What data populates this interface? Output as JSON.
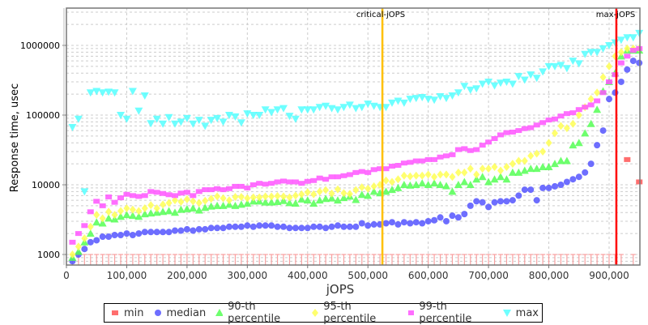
{
  "chart_data": {
    "type": "scatter",
    "title": "",
    "xlabel": "jOPS",
    "ylabel": "Response time, usec",
    "xscale": "linear",
    "yscale": "log",
    "xlim": [
      0,
      950000
    ],
    "ylim": [
      700,
      3000000
    ],
    "x_ticks": [
      "0",
      "100,000",
      "200,000",
      "300,000",
      "400,000",
      "500,000",
      "600,000",
      "700,000",
      "800,000",
      "900,000"
    ],
    "y_ticks": [
      "1000",
      "10000",
      "100000",
      "1000000"
    ],
    "grid": true,
    "legend_position": "bottom",
    "annotations": [
      {
        "label": "critical-jOPS",
        "x": 524000,
        "color": "#ffc000"
      },
      {
        "label": "max-jOPS",
        "x": 912000,
        "color": "#ff0000"
      }
    ],
    "x": [
      10000,
      20000,
      30000,
      40000,
      50000,
      60000,
      70000,
      80000,
      90000,
      100000,
      110000,
      120000,
      130000,
      140000,
      150000,
      160000,
      170000,
      180000,
      190000,
      200000,
      210000,
      220000,
      230000,
      240000,
      250000,
      260000,
      270000,
      280000,
      290000,
      300000,
      310000,
      320000,
      330000,
      340000,
      350000,
      360000,
      370000,
      380000,
      390000,
      400000,
      410000,
      420000,
      430000,
      440000,
      450000,
      460000,
      470000,
      480000,
      490000,
      500000,
      510000,
      520000,
      530000,
      540000,
      550000,
      560000,
      570000,
      580000,
      590000,
      600000,
      610000,
      620000,
      630000,
      640000,
      650000,
      660000,
      670000,
      680000,
      690000,
      700000,
      710000,
      720000,
      730000,
      740000,
      750000,
      760000,
      770000,
      780000,
      790000,
      800000,
      810000,
      820000,
      830000,
      840000,
      850000,
      860000,
      870000,
      880000,
      890000,
      900000,
      910000,
      920000,
      930000,
      940000,
      950000
    ],
    "series": [
      {
        "name": "min",
        "color": "#ff5555",
        "marker": "square",
        "values": [
          1000,
          1000,
          1000,
          1000,
          1000,
          1000,
          1000,
          1000,
          1000,
          1000,
          1000,
          1000,
          1000,
          1000,
          1000,
          1000,
          1000,
          1000,
          1000,
          1000,
          1000,
          1000,
          1000,
          1000,
          1000,
          1000,
          1000,
          1000,
          1000,
          1000,
          1000,
          1000,
          1000,
          1000,
          1000,
          1000,
          1000,
          1000,
          1000,
          1000,
          1000,
          1000,
          1000,
          1000,
          1000,
          1000,
          1000,
          1000,
          1000,
          1000,
          1000,
          1000,
          1000,
          1000,
          1000,
          1000,
          1000,
          1000,
          1000,
          1000,
          1000,
          1000,
          1000,
          1000,
          1000,
          1000,
          1000,
          1000,
          1000,
          1000,
          1000,
          1000,
          1000,
          1000,
          1000,
          1000,
          1000,
          1000,
          1000,
          1000,
          1000,
          1000,
          1000,
          1000,
          1000,
          1000,
          1000,
          1000,
          1000,
          1000,
          1000,
          1000,
          23000,
          1000,
          11000
        ]
      },
      {
        "name": "median",
        "color": "#5555ff",
        "marker": "circle",
        "values": [
          800,
          1000,
          1200,
          1500,
          1600,
          1800,
          1800,
          1900,
          1900,
          2000,
          1900,
          2000,
          2100,
          2100,
          2100,
          2100,
          2100,
          2200,
          2200,
          2300,
          2200,
          2300,
          2300,
          2400,
          2400,
          2400,
          2500,
          2500,
          2500,
          2600,
          2500,
          2600,
          2600,
          2600,
          2500,
          2500,
          2400,
          2400,
          2400,
          2400,
          2500,
          2500,
          2400,
          2500,
          2600,
          2500,
          2500,
          2500,
          2800,
          2600,
          2700,
          2700,
          2800,
          2900,
          2700,
          2900,
          2800,
          2900,
          2800,
          3000,
          3100,
          3400,
          3000,
          3600,
          3400,
          3800,
          5000,
          5800,
          5600,
          4800,
          5600,
          5800,
          5800,
          6000,
          7000,
          8500,
          8500,
          6000,
          9000,
          9000,
          9500,
          10000,
          11000,
          12000,
          13000,
          15000,
          20000,
          37000,
          60000,
          170000,
          210000,
          300000,
          450000,
          600000,
          560000
        ]
      },
      {
        "name": "90-th percentile",
        "color": "#55ff55",
        "marker": "triangle-up",
        "values": [
          900,
          1100,
          1500,
          2000,
          2900,
          2800,
          3300,
          3200,
          3500,
          3700,
          3600,
          3500,
          3800,
          3900,
          4000,
          4100,
          4200,
          4000,
          4400,
          4500,
          4600,
          4300,
          4700,
          4900,
          5000,
          5000,
          5200,
          5000,
          5200,
          5400,
          5800,
          5800,
          5600,
          5600,
          5700,
          5900,
          5500,
          5400,
          6200,
          6000,
          5400,
          6000,
          6300,
          6400,
          6000,
          6500,
          6800,
          6100,
          7200,
          7000,
          8000,
          7600,
          8000,
          8500,
          9000,
          10000,
          9800,
          10000,
          10500,
          10000,
          10500,
          10000,
          9600,
          8000,
          10000,
          11000,
          10000,
          12000,
          13000,
          11000,
          12000,
          13000,
          12000,
          15000,
          15000,
          16000,
          17000,
          17000,
          18000,
          18000,
          20000,
          22000,
          22000,
          37000,
          40000,
          55000,
          75000,
          120000,
          220000,
          300000,
          400000,
          700000,
          850000,
          850000,
          850000
        ]
      },
      {
        "name": "95-th percentile",
        "color": "#ffff55",
        "marker": "diamond",
        "values": [
          1000,
          1300,
          1700,
          2500,
          3700,
          3300,
          4100,
          3700,
          4200,
          4600,
          4400,
          4200,
          4600,
          5100,
          4600,
          5200,
          5500,
          6000,
          5700,
          6200,
          5800,
          5500,
          5900,
          6300,
          6800,
          6400,
          6000,
          6700,
          6700,
          6400,
          6600,
          6600,
          6800,
          6800,
          6900,
          6800,
          6600,
          7000,
          7300,
          7800,
          7300,
          8000,
          8400,
          7500,
          8600,
          7600,
          7400,
          8400,
          9200,
          8800,
          9500,
          10000,
          11500,
          11000,
          12000,
          13500,
          13200,
          13500,
          13500,
          14000,
          13000,
          14000,
          14000,
          13000,
          15000,
          15000,
          17000,
          14000,
          17000,
          17000,
          18000,
          16000,
          18000,
          20000,
          22000,
          22000,
          26000,
          28000,
          30000,
          40000,
          55000,
          70000,
          65000,
          75000,
          100000,
          130000,
          170000,
          210000,
          350000,
          500000,
          700000,
          800000,
          900000,
          900000,
          900000
        ]
      },
      {
        "name": "99-th percentile",
        "color": "#ff55ff",
        "marker": "square",
        "values": [
          1500,
          2000,
          2600,
          4100,
          5800,
          5000,
          6700,
          5600,
          6500,
          7300,
          7000,
          6800,
          7000,
          8000,
          7800,
          7500,
          7200,
          7000,
          7600,
          7800,
          7000,
          8000,
          8500,
          8500,
          8800,
          8500,
          8800,
          9500,
          9500,
          9000,
          10000,
          10500,
          10200,
          10500,
          11000,
          11300,
          11000,
          11000,
          10500,
          11200,
          11500,
          12500,
          12000,
          13000,
          13000,
          13500,
          14000,
          15000,
          15500,
          15000,
          16500,
          17000,
          17000,
          18500,
          19000,
          20500,
          21000,
          22000,
          22000,
          23000,
          23000,
          25000,
          26000,
          27000,
          32000,
          33000,
          31000,
          32000,
          37000,
          41000,
          46000,
          52000,
          56000,
          57000,
          60000,
          64000,
          66000,
          72000,
          78000,
          85000,
          88000,
          97000,
          105000,
          108000,
          120000,
          130000,
          140000,
          160000,
          210000,
          300000,
          380000,
          560000,
          700000,
          850000,
          900000
        ]
      },
      {
        "name": "max",
        "color": "#55ffff",
        "marker": "triangle-down",
        "values": [
          67000,
          88000,
          8000,
          210000,
          220000,
          210000,
          215000,
          210000,
          100000,
          88000,
          220000,
          115000,
          190000,
          76000,
          88000,
          75000,
          93000,
          75000,
          80000,
          90000,
          75000,
          85000,
          70000,
          85000,
          90000,
          80000,
          100000,
          95000,
          78000,
          105000,
          100000,
          100000,
          120000,
          110000,
          120000,
          125000,
          97000,
          88000,
          120000,
          120000,
          120000,
          130000,
          135000,
          125000,
          120000,
          130000,
          140000,
          125000,
          130000,
          145000,
          135000,
          130000,
          130000,
          150000,
          160000,
          150000,
          170000,
          175000,
          180000,
          170000,
          165000,
          185000,
          175000,
          190000,
          210000,
          260000,
          230000,
          240000,
          280000,
          300000,
          265000,
          290000,
          300000,
          280000,
          360000,
          320000,
          380000,
          340000,
          420000,
          500000,
          500000,
          520000,
          470000,
          600000,
          550000,
          750000,
          800000,
          800000,
          900000,
          1000000,
          1100000,
          1200000,
          1300000,
          1300000,
          1500000
        ]
      }
    ]
  },
  "axes": {
    "xlabel": "jOPS",
    "ylabel": "Response time, usec",
    "x_ticks": [
      "0",
      "100,000",
      "200,000",
      "300,000",
      "400,000",
      "500,000",
      "600,000",
      "700,000",
      "800,000",
      "900,000"
    ],
    "y_ticks": [
      "1000",
      "10000",
      "100000",
      "1000000"
    ]
  },
  "annotations": {
    "critical": "critical-jOPS",
    "max": "max-jOPS"
  },
  "legend": {
    "items": [
      {
        "label": "min",
        "color": "#ff5555",
        "marker": "square"
      },
      {
        "label": "median",
        "color": "#5555ff",
        "marker": "circle"
      },
      {
        "label": "90-th percentile",
        "color": "#55ff55",
        "marker": "triangle-up"
      },
      {
        "label": "95-th percentile",
        "color": "#ffff55",
        "marker": "diamond"
      },
      {
        "label": "99-th percentile",
        "color": "#ff55ff",
        "marker": "square"
      },
      {
        "label": "max",
        "color": "#55ffff",
        "marker": "triangle-down"
      }
    ]
  }
}
